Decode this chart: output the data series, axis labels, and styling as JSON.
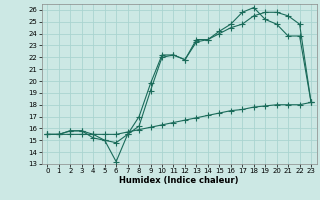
{
  "xlabel": "Humidex (Indice chaleur)",
  "bg_color": "#cce8e4",
  "grid_color": "#aad4d0",
  "line_color": "#1a6b5a",
  "xlim": [
    -0.5,
    23.5
  ],
  "ylim": [
    13,
    26.5
  ],
  "xticks": [
    0,
    1,
    2,
    3,
    4,
    5,
    6,
    7,
    8,
    9,
    10,
    11,
    12,
    13,
    14,
    15,
    16,
    17,
    18,
    19,
    20,
    21,
    22,
    23
  ],
  "yticks": [
    13,
    14,
    15,
    16,
    17,
    18,
    19,
    20,
    21,
    22,
    23,
    24,
    25,
    26
  ],
  "line1_x": [
    0,
    1,
    2,
    3,
    4,
    5,
    6,
    7,
    8,
    9,
    10,
    11,
    12,
    13,
    14,
    15,
    16,
    17,
    18,
    19,
    20,
    21,
    22,
    23
  ],
  "line1_y": [
    15.5,
    15.5,
    15.8,
    15.8,
    15.5,
    15.0,
    13.2,
    15.5,
    17.0,
    19.8,
    22.2,
    22.2,
    21.8,
    23.5,
    23.5,
    24.2,
    24.8,
    25.8,
    26.2,
    25.2,
    24.8,
    23.8,
    23.8,
    18.2
  ],
  "line2_x": [
    0,
    1,
    2,
    3,
    4,
    5,
    6,
    7,
    8,
    9,
    10,
    11,
    12,
    13,
    14,
    15,
    16,
    17,
    18,
    19,
    20,
    21,
    22,
    23
  ],
  "line2_y": [
    15.5,
    15.5,
    15.8,
    15.8,
    15.2,
    15.0,
    14.8,
    15.5,
    16.2,
    19.2,
    22.0,
    22.2,
    21.8,
    23.3,
    23.5,
    24.0,
    24.5,
    24.8,
    25.5,
    25.8,
    25.8,
    25.5,
    24.8,
    18.2
  ],
  "line3_x": [
    0,
    1,
    2,
    3,
    4,
    5,
    6,
    7,
    8,
    9,
    10,
    11,
    12,
    13,
    14,
    15,
    16,
    17,
    18,
    19,
    20,
    21,
    22,
    23
  ],
  "line3_y": [
    15.5,
    15.5,
    15.5,
    15.5,
    15.5,
    15.5,
    15.5,
    15.7,
    15.9,
    16.1,
    16.3,
    16.5,
    16.7,
    16.9,
    17.1,
    17.3,
    17.5,
    17.6,
    17.8,
    17.9,
    18.0,
    18.0,
    18.0,
    18.2
  ]
}
